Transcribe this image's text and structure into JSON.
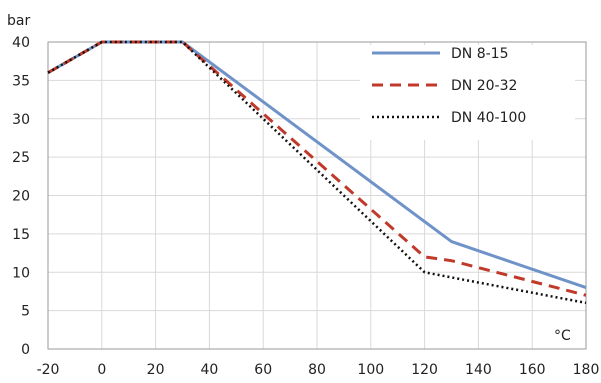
{
  "chart_data": {
    "type": "line",
    "ylabel": "bar",
    "xlabel": "°C",
    "xlim": [
      -20,
      180
    ],
    "ylim": [
      0,
      40
    ],
    "xticks": [
      -20,
      0,
      20,
      40,
      60,
      80,
      100,
      120,
      140,
      160,
      180
    ],
    "yticks": [
      0,
      5,
      10,
      15,
      20,
      25,
      30,
      35,
      40
    ],
    "grid": true,
    "legend_position": "top-right",
    "series": [
      {
        "name": "DN 8-15",
        "style": "solid",
        "color": "#6f93c9",
        "points": [
          [
            -20,
            36
          ],
          [
            0,
            40
          ],
          [
            30,
            40
          ],
          [
            130,
            14
          ],
          [
            180,
            8
          ]
        ]
      },
      {
        "name": "DN 20-32",
        "style": "dashed",
        "color": "#c0392b",
        "points": [
          [
            -20,
            36
          ],
          [
            0,
            40
          ],
          [
            30,
            40
          ],
          [
            120,
            12
          ],
          [
            130,
            11.5
          ],
          [
            180,
            7
          ]
        ]
      },
      {
        "name": "DN 40-100",
        "style": "dotted",
        "color": "#111111",
        "points": [
          [
            -20,
            36
          ],
          [
            0,
            40
          ],
          [
            30,
            40
          ],
          [
            120,
            10
          ],
          [
            180,
            6
          ]
        ]
      }
    ]
  }
}
